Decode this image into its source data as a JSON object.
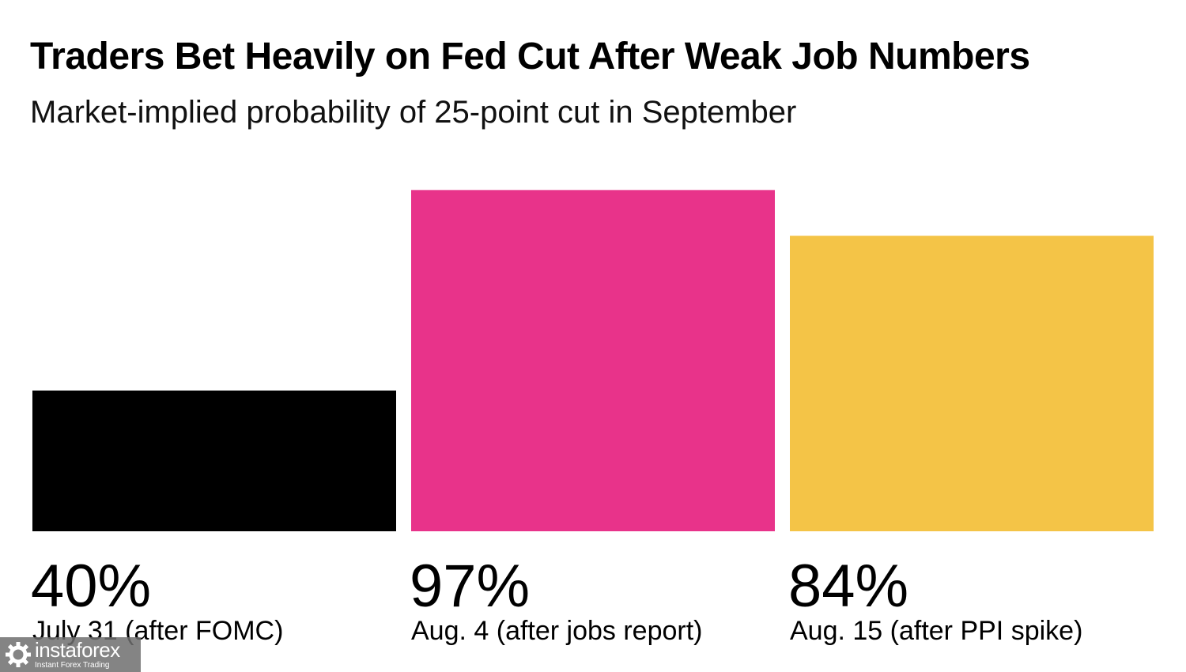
{
  "header": {
    "title": "Traders Bet Heavily on Fed Cut After Weak Job Numbers",
    "subtitle": "Market-implied probability of 25-point cut in September"
  },
  "chart_data": {
    "type": "bar",
    "title": "Traders Bet Heavily on Fed Cut After Weak Job Numbers",
    "subtitle": "Market-implied probability of 25-point cut in September",
    "categories": [
      "July 31 (after FOMC)",
      "Aug. 4 (after jobs report)",
      "Aug. 15 (after PPI spike)"
    ],
    "values": [
      40,
      97,
      84
    ],
    "value_labels": [
      "40%",
      "97%",
      "84%"
    ],
    "colors": [
      "#000000",
      "#e8338a",
      "#f4c447"
    ],
    "ylim": [
      0,
      100
    ],
    "grid": false,
    "legend": "none"
  },
  "watermark": {
    "name": "instaforex",
    "tagline": "Instant Forex Trading",
    "icon": "gear-icon"
  }
}
